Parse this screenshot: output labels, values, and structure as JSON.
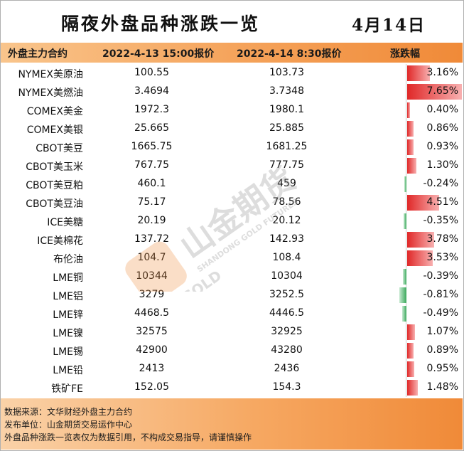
{
  "title": "隔夜外盘品种涨跌一览",
  "date": "4月14日",
  "headers": {
    "name": "外盘主力合约",
    "price1": "2022-4-13 15:00报价",
    "price2": "2022-4-14 8:30报价",
    "change": "涨跌幅"
  },
  "rows": [
    {
      "name": "NYMEX美原油",
      "p1": "100.55",
      "p2": "103.73",
      "pct": "3.16%",
      "value": 3.16
    },
    {
      "name": "NYMEX美燃油",
      "p1": "3.4694",
      "p2": "3.7348",
      "pct": "7.65%",
      "value": 7.65
    },
    {
      "name": "COMEX美金",
      "p1": "1972.3",
      "p2": "1980.1",
      "pct": "0.40%",
      "value": 0.4
    },
    {
      "name": "COMEX美银",
      "p1": "25.665",
      "p2": "25.885",
      "pct": "0.86%",
      "value": 0.86
    },
    {
      "name": "CBOT美豆",
      "p1": "1665.75",
      "p2": "1681.25",
      "pct": "0.93%",
      "value": 0.93
    },
    {
      "name": "CBOT美玉米",
      "p1": "767.75",
      "p2": "777.75",
      "pct": "1.30%",
      "value": 1.3
    },
    {
      "name": "CBOT美豆粕",
      "p1": "460.1",
      "p2": "459",
      "pct": "-0.24%",
      "value": -0.24
    },
    {
      "name": "CBOT美豆油",
      "p1": "75.17",
      "p2": "78.56",
      "pct": "4.51%",
      "value": 4.51
    },
    {
      "name": "ICE美糖",
      "p1": "20.19",
      "p2": "20.12",
      "pct": "-0.35%",
      "value": -0.35
    },
    {
      "name": "ICE美棉花",
      "p1": "137.72",
      "p2": "142.93",
      "pct": "3.78%",
      "value": 3.78
    },
    {
      "name": "布伦油",
      "p1": "104.7",
      "p2": "108.4",
      "pct": "3.53%",
      "value": 3.53
    },
    {
      "name": "LME铜",
      "p1": "10344",
      "p2": "10304",
      "pct": "-0.39%",
      "value": -0.39
    },
    {
      "name": "LME铝",
      "p1": "3279",
      "p2": "3252.5",
      "pct": "-0.81%",
      "value": -0.81
    },
    {
      "name": "LME锌",
      "p1": "4468.5",
      "p2": "4446.5",
      "pct": "-0.49%",
      "value": -0.49
    },
    {
      "name": "LME镍",
      "p1": "32575",
      "p2": "32925",
      "pct": "1.07%",
      "value": 1.07
    },
    {
      "name": "LME锡",
      "p1": "42900",
      "p2": "43280",
      "pct": "0.89%",
      "value": 0.89
    },
    {
      "name": "LME铅",
      "p1": "2413",
      "p2": "2436",
      "pct": "0.95%",
      "value": 0.95
    },
    {
      "name": "铁矿FE",
      "p1": "152.05",
      "p2": "154.3",
      "pct": "1.48%",
      "value": 1.48
    }
  ],
  "footer": {
    "source": "数据来源：文华财经外盘主力合约",
    "publisher": "发布单位：山金期货交易运作中心",
    "disclaimer": "外盘品种涨跌一览表仅为数据引用，不构成交易指导，请谨慎操作"
  },
  "watermark": {
    "brand_cn": "山金期货",
    "brand_en": "SHANDONG GOLD FUTURES",
    "logo_text": "SD-GOLD"
  },
  "colors": {
    "positive": "#e02828",
    "negative": "#3aa85a",
    "accent": "#f08a38"
  }
}
